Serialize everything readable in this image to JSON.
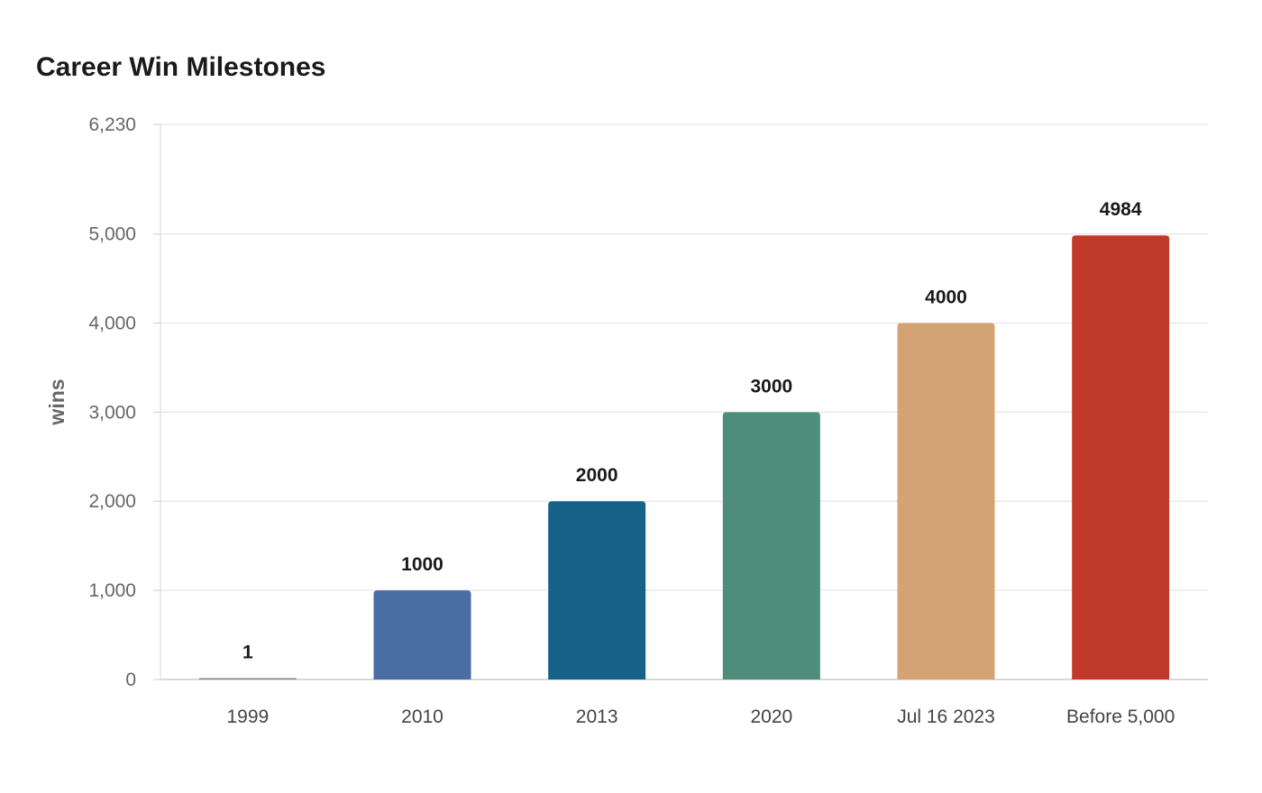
{
  "chart_data": {
    "type": "bar",
    "title": "Career Win Milestones",
    "ylabel": "wins",
    "xlabel": "",
    "categories": [
      "1999",
      "2010",
      "2013",
      "2020",
      "Jul 16 2023",
      "Before 5,000"
    ],
    "values": [
      1,
      1000,
      2000,
      3000,
      4000,
      4984
    ],
    "value_labels": [
      "1",
      "1000",
      "2000",
      "3000",
      "4000",
      "4984"
    ],
    "colors": [
      "#888888",
      "#4a6da3",
      "#176289",
      "#4e8c7c",
      "#d3a373",
      "#c0392b"
    ],
    "ylim": [
      0,
      6230
    ],
    "yticks": [
      0,
      1000,
      2000,
      3000,
      4000,
      5000,
      6230
    ],
    "ytick_labels": [
      "0",
      "1,000",
      "2,000",
      "3,000",
      "4,000",
      "5,000",
      "6,230"
    ],
    "grid": true,
    "legend": "none"
  }
}
